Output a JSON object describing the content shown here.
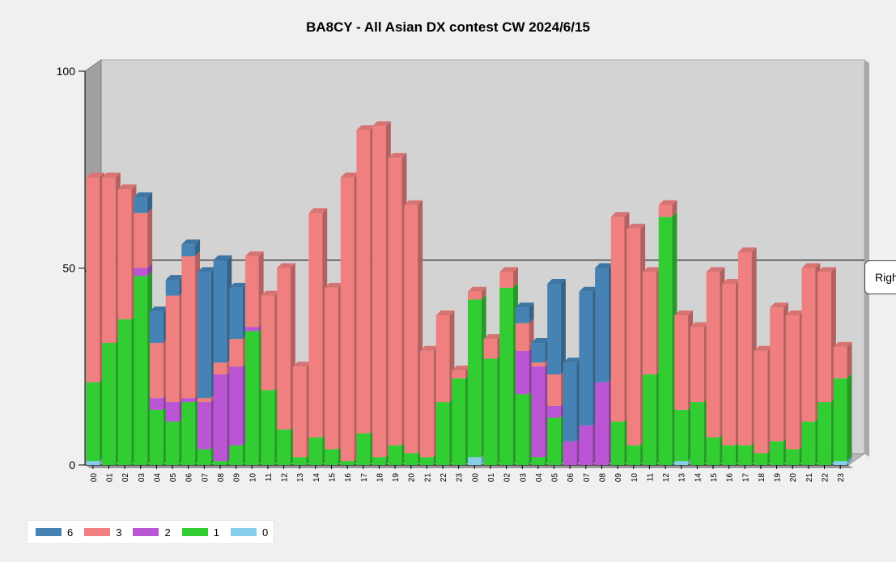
{
  "chart_data": {
    "type": "bar",
    "stacked": true,
    "three_d": true,
    "title": "BA8CY - All Asian DX contest CW 2024/6/15",
    "ylim": [
      0,
      100
    ],
    "yticks": [
      "0",
      "50",
      "100"
    ],
    "categories": [
      "00",
      "01",
      "02",
      "03",
      "04",
      "05",
      "06",
      "07",
      "08",
      "09",
      "10",
      "11",
      "12",
      "13",
      "14",
      "15",
      "16",
      "17",
      "18",
      "19",
      "20",
      "21",
      "22",
      "23",
      "00",
      "01",
      "02",
      "03",
      "04",
      "05",
      "06",
      "07",
      "08",
      "09",
      "10",
      "11",
      "12",
      "13",
      "14",
      "15",
      "16",
      "17",
      "18",
      "19",
      "20",
      "21",
      "22",
      "23"
    ],
    "series": [
      {
        "name": "0",
        "color": "#87ceeb",
        "values": [
          1,
          0,
          0,
          0,
          0,
          0,
          0,
          0,
          0,
          0,
          0,
          0,
          0,
          0,
          0,
          0,
          0,
          0,
          0,
          0,
          0,
          0,
          0,
          0,
          2,
          0,
          0,
          0,
          0,
          0,
          0,
          0,
          0,
          0,
          0,
          0,
          0,
          1,
          0,
          0,
          0,
          0,
          0,
          0,
          0,
          0,
          0,
          1
        ]
      },
      {
        "name": "1",
        "color": "#32cd32",
        "values": [
          20,
          31,
          37,
          48,
          14,
          11,
          16,
          4,
          1,
          5,
          34,
          19,
          9,
          2,
          7,
          4,
          1,
          8,
          2,
          5,
          3,
          2,
          16,
          22,
          40,
          27,
          45,
          18,
          2,
          12,
          0,
          0,
          0,
          11,
          5,
          23,
          63,
          13,
          16,
          7,
          5,
          5,
          3,
          6,
          4,
          11,
          16,
          21
        ]
      },
      {
        "name": "2",
        "color": "#ba55d3",
        "values": [
          0,
          0,
          0,
          2,
          3,
          5,
          1,
          12,
          22,
          20,
          1,
          0,
          0,
          0,
          0,
          0,
          0,
          0,
          0,
          0,
          0,
          0,
          0,
          0,
          0,
          0,
          0,
          11,
          23,
          3,
          6,
          10,
          21,
          0,
          0,
          0,
          0,
          0,
          0,
          0,
          0,
          0,
          0,
          0,
          0,
          0,
          0,
          0
        ]
      },
      {
        "name": "3",
        "color": "#f08080",
        "values": [
          52,
          42,
          33,
          14,
          14,
          27,
          36,
          1,
          3,
          7,
          18,
          24,
          41,
          23,
          57,
          41,
          72,
          77,
          84,
          73,
          63,
          27,
          22,
          2,
          2,
          5,
          4,
          7,
          1,
          8,
          0,
          0,
          0,
          52,
          55,
          26,
          3,
          24,
          19,
          42,
          41,
          49,
          26,
          34,
          34,
          39,
          33,
          8
        ]
      },
      {
        "name": "6",
        "color": "#4682b4",
        "values": [
          0,
          0,
          0,
          4,
          8,
          4,
          3,
          32,
          26,
          13,
          0,
          0,
          0,
          0,
          0,
          0,
          0,
          0,
          0,
          0,
          0,
          0,
          0,
          0,
          0,
          0,
          0,
          4,
          5,
          23,
          20,
          34,
          29,
          0,
          0,
          0,
          0,
          0,
          0,
          0,
          0,
          0,
          0,
          0,
          0,
          0,
          0,
          0
        ]
      }
    ],
    "horizontal_line": 52,
    "legend_order": [
      "6",
      "3",
      "2",
      "1",
      "0"
    ],
    "legend_position": "bottom-left"
  },
  "tooltip": {
    "text": "Right"
  }
}
